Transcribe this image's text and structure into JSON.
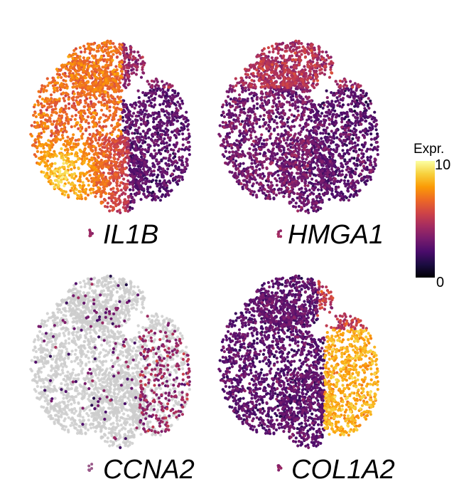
{
  "chart_data": [
    {
      "type": "scatter",
      "title": "IL1B",
      "color_variable": "Expr.",
      "color_range": [
        0,
        10
      ],
      "expression_pattern": [
        {
          "region": "left-lower lobe",
          "level": 9
        },
        {
          "region": "left-center",
          "level": 6.5
        },
        {
          "region": "top",
          "level": 4
        },
        {
          "region": "right lobe",
          "level": 2.5
        }
      ]
    },
    {
      "type": "scatter",
      "title": "HMGA1",
      "color_variable": "Expr.",
      "color_range": [
        0,
        10
      ],
      "expression_pattern": [
        {
          "region": "top",
          "level": 4.5
        },
        {
          "region": "left lobe",
          "level": 3
        },
        {
          "region": "right lobe",
          "level": 2.5
        },
        {
          "region": "bottom",
          "level": 2
        }
      ]
    },
    {
      "type": "scatter",
      "title": "CCNA2",
      "color_variable": "Expr.",
      "color_range": [
        0,
        10
      ],
      "expression_pattern": [
        {
          "region": "right lobe",
          "level": 4,
          "fraction_expressing": 0.45
        },
        {
          "region": "elsewhere",
          "level": 3,
          "fraction_expressing": 0.05
        }
      ]
    },
    {
      "type": "scatter",
      "title": "COL1A2",
      "color_variable": "Expr.",
      "color_range": [
        0,
        10
      ],
      "expression_pattern": [
        {
          "region": "right lobe",
          "level": 8
        },
        {
          "region": "top-right",
          "level": 5
        },
        {
          "region": "left lobe",
          "level": 2.5
        }
      ]
    }
  ],
  "legend": {
    "title": "Expr.",
    "max_label": "10",
    "min_label": "0",
    "colormap": [
      "#000004",
      "#1b0c41",
      "#4a0c6b",
      "#781c6d",
      "#a52c60",
      "#cf4446",
      "#ed6925",
      "#fb9b06",
      "#f7d13d",
      "#fcffa4"
    ],
    "na_color": "#cccccc"
  }
}
